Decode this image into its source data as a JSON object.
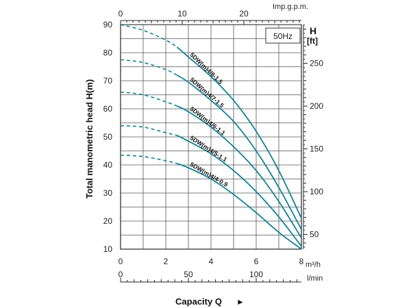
{
  "chart_data": {
    "type": "line",
    "ylabel": "Total manometric head H(m)",
    "xlabel": "Capacity Q",
    "xlabel_arrow": "►",
    "freq_label": "50Hz",
    "x_unit_primary": "m³/h",
    "x_unit_top": "Imp.g.p.m.",
    "x_unit_lmin": "l/min",
    "y_unit_right": "H",
    "y_unit_right_sub": "[ft]",
    "xlim": [
      0,
      8
    ],
    "ylim": [
      10,
      90
    ],
    "x_ticks": [
      "0",
      "2",
      "4",
      "6",
      "8"
    ],
    "y_ticks": [
      "10",
      "20",
      "30",
      "40",
      "50",
      "60",
      "70",
      "80",
      "90"
    ],
    "top_ticks": [
      {
        "v": 0,
        "label": "0"
      },
      {
        "v": 10,
        "label": "10"
      },
      {
        "v": 20,
        "label": "20"
      }
    ],
    "lmin_ticks": [
      {
        "v": 0,
        "label": "0"
      },
      {
        "v": 50,
        "label": "50"
      },
      {
        "v": 100,
        "label": "100"
      }
    ],
    "ft_ticks": [
      {
        "v": 50,
        "label": "50"
      },
      {
        "v": 100,
        "label": "100"
      },
      {
        "v": 150,
        "label": "150"
      },
      {
        "v": 200,
        "label": "200"
      },
      {
        "v": 250,
        "label": "250"
      }
    ],
    "grid": true,
    "series_color": "#0f8095",
    "series": [
      {
        "name": "5DW(m)4/8-1.5",
        "dashed_until": 2.5,
        "x": [
          0,
          1,
          2,
          2.5,
          3,
          4,
          5,
          6,
          7,
          8
        ],
        "y": [
          90,
          88,
          84.5,
          82,
          78.5,
          71.5,
          63,
          52,
          38,
          21
        ]
      },
      {
        "name": "5DW(m)4/7-1.5",
        "dashed_until": 2.5,
        "x": [
          0,
          1,
          2,
          2.5,
          3,
          4,
          5,
          6,
          7,
          8
        ],
        "y": [
          77.5,
          76.5,
          74,
          72,
          69.5,
          63,
          55.5,
          45,
          32,
          17
        ]
      },
      {
        "name": "5DW(m)4/6-1.1",
        "dashed_until": 2.5,
        "x": [
          0,
          1,
          2,
          2.5,
          3,
          4,
          5,
          6,
          7,
          8
        ],
        "y": [
          66,
          65,
          62.5,
          61,
          59,
          53.5,
          46.5,
          38,
          27,
          14
        ]
      },
      {
        "name": "5DW(m)4/5-1.1",
        "dashed_until": 2.5,
        "x": [
          0,
          1,
          2,
          2.5,
          3,
          4,
          5,
          6,
          7,
          8
        ],
        "y": [
          54,
          53.5,
          51.5,
          50.5,
          48.5,
          44,
          38,
          30.5,
          21.5,
          11
        ]
      },
      {
        "name": "5DW(m)4/4-0.9",
        "dashed_until": 2.5,
        "x": [
          0,
          1,
          2,
          2.5,
          3,
          4,
          5,
          6,
          7,
          8
        ],
        "y": [
          43.5,
          43,
          41.5,
          40.5,
          39,
          35,
          29.5,
          23,
          16,
          10
        ]
      }
    ]
  }
}
